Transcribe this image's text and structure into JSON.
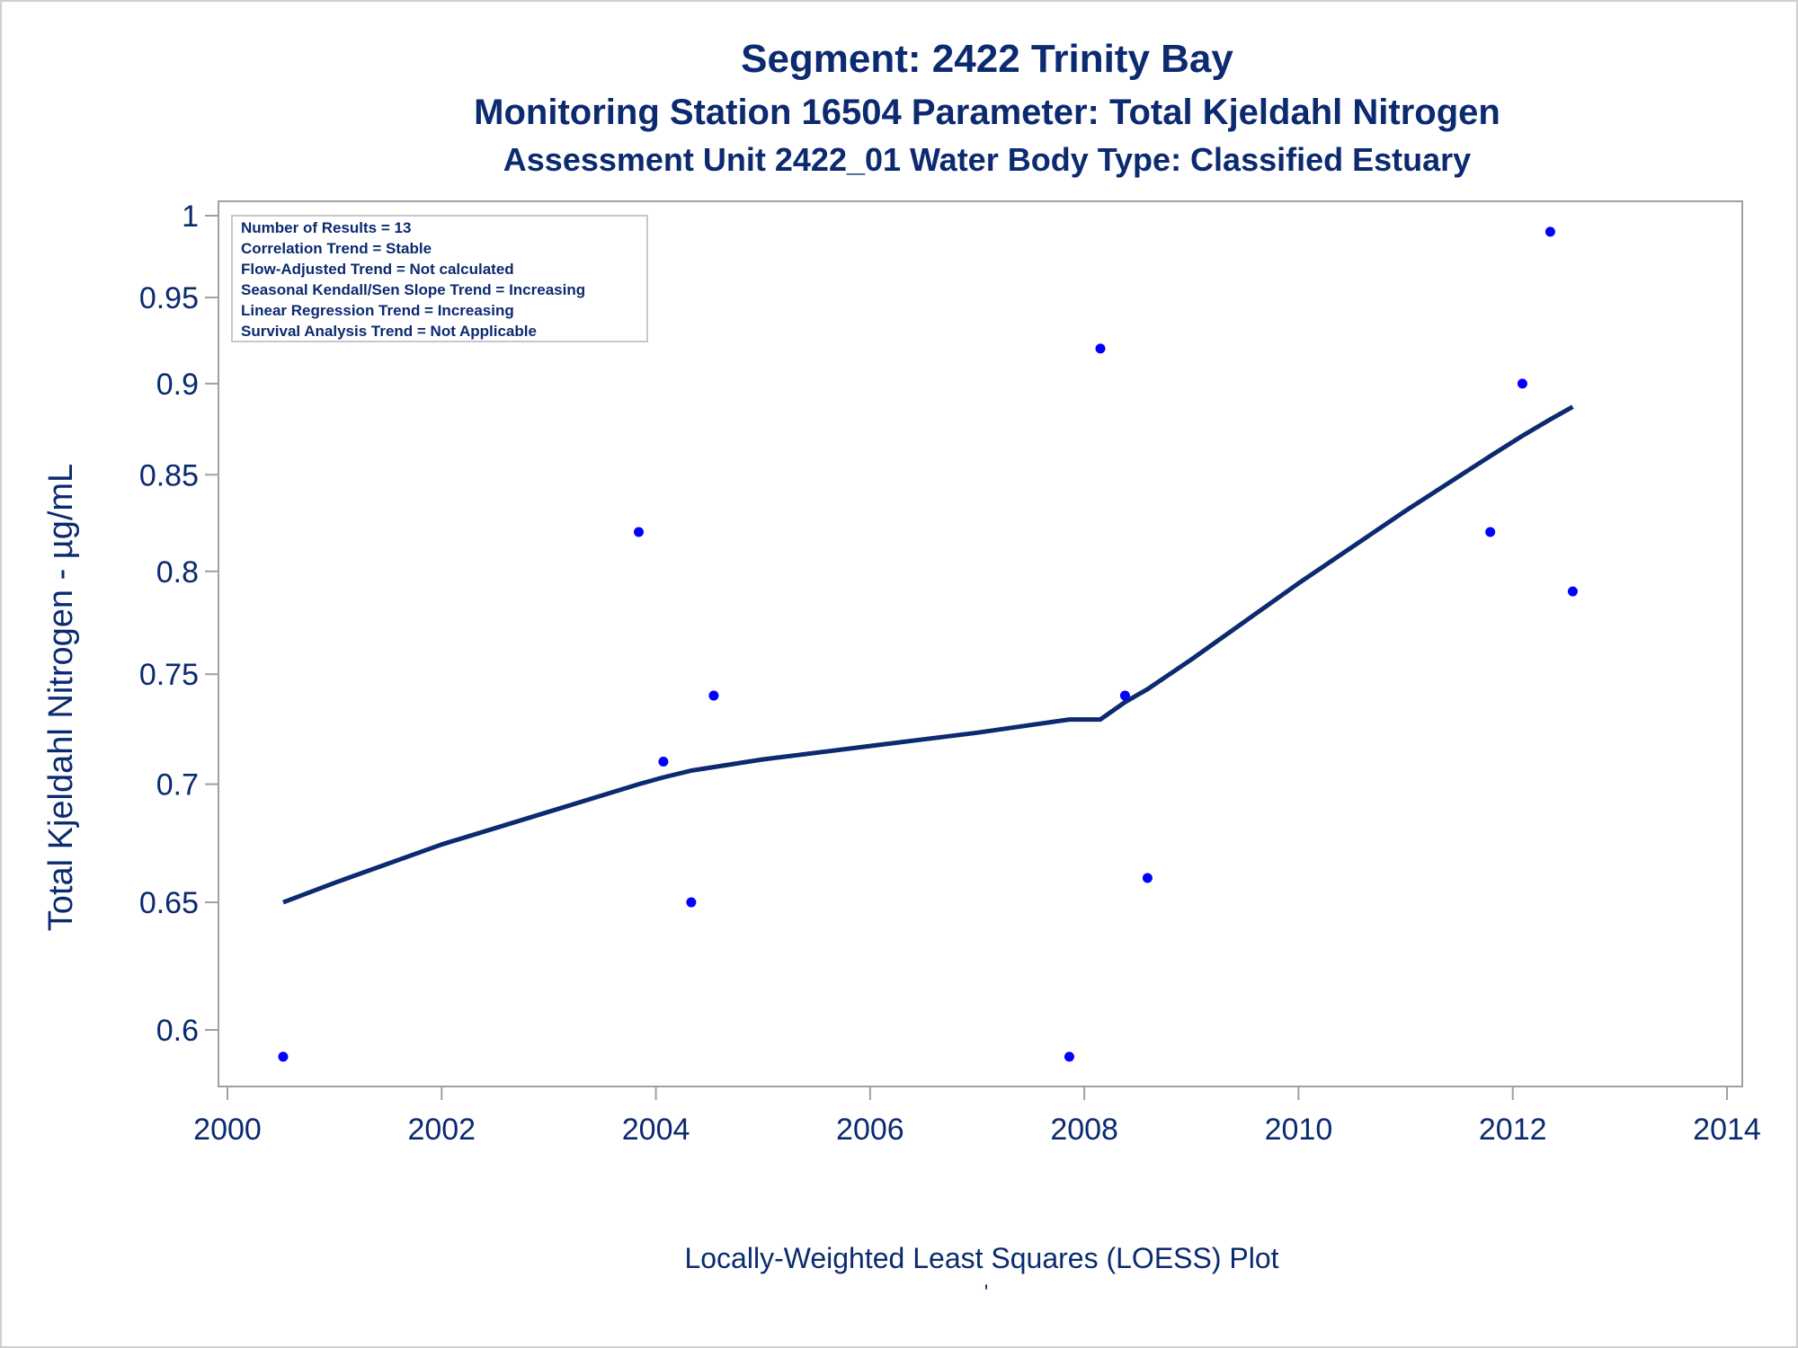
{
  "chart_data": {
    "type": "scatter",
    "title": "Segment: 2422  Trinity Bay",
    "subtitle": "Monitoring Station 16504 Parameter: Total Kjeldahl Nitrogen",
    "subtitle2": "Assessment Unit 2422_01   Water Body Type: Classified Estuary",
    "xlabel": "",
    "ylabel": "Total Kjeldahl Nitrogen -  µg/mL",
    "footnote": "Locally-Weighted Least Squares (LOESS) Plot",
    "footnote_mark": "'",
    "y_scale": "log",
    "xlim": [
      2000,
      2014
    ],
    "ylim": [
      0.583,
      1.0
    ],
    "x_ticks": [
      2000,
      2002,
      2004,
      2006,
      2008,
      2010,
      2012,
      2014
    ],
    "x_tick_labels": [
      "2000",
      "2002",
      "2004",
      "2006",
      "2008",
      "2010",
      "2012",
      "2014"
    ],
    "y_ticks": [
      0.6,
      0.65,
      0.7,
      0.75,
      0.8,
      0.85,
      0.9,
      0.95,
      1
    ],
    "y_tick_labels": [
      "0.6",
      "0.65",
      "0.7",
      "0.75",
      "0.8",
      "0.85",
      "0.9",
      "0.95",
      "1"
    ],
    "grid": false,
    "legend_position": "top-left",
    "stats_box": [
      "Number of Results = 13",
      "Correlation Trend = Stable",
      "Flow-Adjusted Trend = Not calculated",
      "Seasonal Kendall/Sen Slope Trend = Increasing",
      "Linear Regression Trend = Increasing",
      "Survival Analysis Trend = Not Applicable"
    ],
    "series": [
      {
        "type": "scatter",
        "x": [
          2000.52,
          2003.84,
          2004.07,
          2004.33,
          2004.54,
          2007.86,
          2008.15,
          2008.38,
          2008.59,
          2011.79,
          2012.09,
          2012.35,
          2012.56
        ],
        "y": [
          0.59,
          0.82,
          0.71,
          0.65,
          0.74,
          0.59,
          0.92,
          0.74,
          0.66,
          0.82,
          0.9,
          0.99,
          0.79
        ]
      },
      {
        "type": "line",
        "x": [
          2000.52,
          2001,
          2002,
          2003,
          2003.84,
          2004.07,
          2004.33,
          2005,
          2006,
          2007,
          2007.86,
          2008.15,
          2008.38,
          2008.59,
          2009,
          2010,
          2011,
          2011.79,
          2012.09,
          2012.35,
          2012.56
        ],
        "y": [
          0.65,
          0.658,
          0.674,
          0.688,
          0.7,
          0.703,
          0.706,
          0.711,
          0.717,
          0.723,
          0.729,
          0.729,
          0.737,
          0.743,
          0.757,
          0.794,
          0.831,
          0.86,
          0.871,
          0.88,
          0.887
        ]
      }
    ],
    "colors": {
      "text": "#0b2a6f",
      "marker": "#0000ff",
      "line": "#0b2a6f",
      "axis": "#a0a0a0",
      "tick_text": "#0b2a6f"
    }
  }
}
